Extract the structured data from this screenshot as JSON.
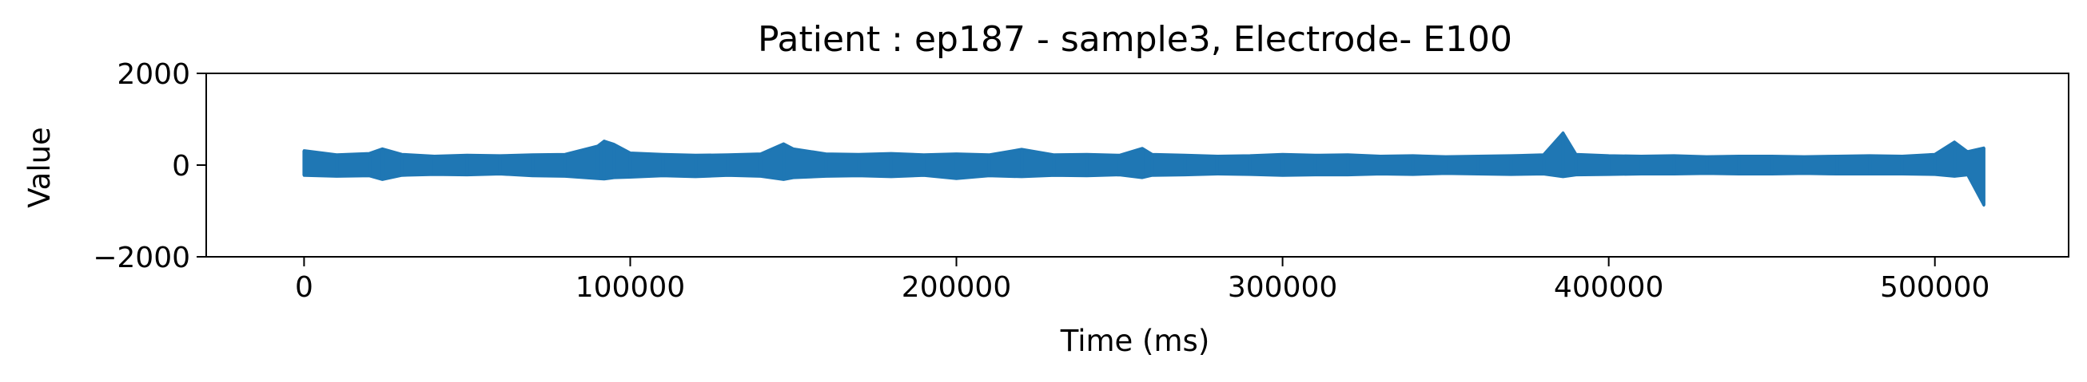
{
  "chart_data": {
    "type": "line",
    "title": "Patient : ep187 - sample3, Electrode- E100",
    "xlabel": "Time (ms)",
    "ylabel": "Value",
    "xlim": [
      -30000,
      541000
    ],
    "ylim": [
      -2000,
      2000
    ],
    "xticks": [
      0,
      100000,
      200000,
      300000,
      400000,
      500000
    ],
    "yticks": [
      -2000,
      0,
      2000
    ],
    "xtick_labels": [
      "0",
      "100000",
      "200000",
      "300000",
      "400000",
      "500000"
    ],
    "ytick_labels": [
      "−2000",
      "0",
      "2000"
    ],
    "grid": false,
    "legend": "none",
    "line_color": "#1f77b4",
    "series": [
      {
        "x": [
          0,
          10000,
          20000,
          24000,
          30000,
          40000,
          50000,
          60000,
          70000,
          80000,
          90000,
          92000,
          95000,
          100000,
          110000,
          120000,
          130000,
          140000,
          147000,
          150000,
          160000,
          170000,
          180000,
          190000,
          200000,
          210000,
          220000,
          230000,
          240000,
          250000,
          257000,
          260000,
          270000,
          280000,
          290000,
          300000,
          310000,
          320000,
          330000,
          340000,
          350000,
          360000,
          370000,
          380000,
          386000,
          390000,
          400000,
          410000,
          420000,
          430000,
          440000,
          450000,
          460000,
          470000,
          480000,
          490000,
          500000,
          506000,
          510000,
          515000
        ],
        "values": [
          320,
          230,
          260,
          360,
          240,
          200,
          220,
          210,
          230,
          240,
          420,
          530,
          460,
          270,
          240,
          220,
          230,
          250,
          470,
          360,
          250,
          240,
          260,
          230,
          250,
          230,
          350,
          230,
          240,
          220,
          370,
          240,
          220,
          200,
          210,
          240,
          220,
          230,
          200,
          210,
          190,
          200,
          210,
          230,
          710,
          240,
          210,
          200,
          210,
          190,
          200,
          200,
          190,
          200,
          210,
          200,
          240,
          510,
          300,
          380
        ],
        "lower": [
          -230,
          -250,
          -240,
          -320,
          -230,
          -210,
          -220,
          -200,
          -240,
          -250,
          -300,
          -310,
          -280,
          -270,
          -240,
          -260,
          -230,
          -250,
          -320,
          -280,
          -250,
          -240,
          -260,
          -230,
          -300,
          -240,
          -260,
          -230,
          -240,
          -220,
          -280,
          -230,
          -220,
          -200,
          -210,
          -230,
          -220,
          -220,
          -200,
          -210,
          -190,
          -200,
          -210,
          -200,
          -260,
          -220,
          -210,
          -200,
          -200,
          -190,
          -200,
          -200,
          -190,
          -200,
          -200,
          -200,
          -210,
          -250,
          -220,
          -880
        ]
      }
    ]
  }
}
